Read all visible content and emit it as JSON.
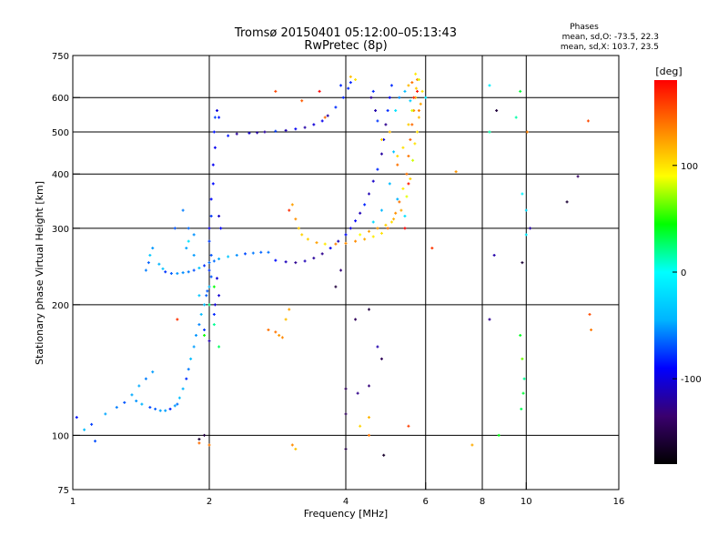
{
  "chart_data": {
    "type": "scatter",
    "title": "Tromsø 20150401 05:12:00–05:13:43",
    "subtitle": "RwPretec (8p)",
    "xlabel": "Frequency [MHz]",
    "ylabel": "Stationary phase Virtual Height [km]",
    "x_scale": "log",
    "y_scale": "log",
    "xlim": [
      1,
      16
    ],
    "ylim": [
      75,
      750
    ],
    "x_ticks": [
      1,
      2,
      4,
      6,
      8,
      10,
      16
    ],
    "x_tick_labels": [
      "1",
      "2",
      "4",
      "6",
      "8",
      "10",
      "16"
    ],
    "y_ticks": [
      75,
      100,
      200,
      300,
      400,
      500,
      600,
      750
    ],
    "y_tick_labels": [
      "75",
      "100",
      "200",
      "300",
      "400",
      "500",
      "600",
      "750"
    ],
    "grid_x": [
      2,
      4,
      6,
      8,
      10
    ],
    "grid_y": [
      100,
      200,
      300,
      400,
      500,
      600
    ],
    "color_encoding": "phase [deg]",
    "stats": {
      "title": "Phases",
      "line1": "mean, sd,O: -73.5, 22.3",
      "line2": "mean, sd,X: 103.7, 23.5"
    },
    "colorbar": {
      "label": "[deg]",
      "min": -180,
      "max": 180,
      "ticks": [
        100,
        0,
        -100
      ],
      "tick_labels": [
        "100",
        "0",
        "-100"
      ],
      "colors": [
        "#000000",
        "#3a006e",
        "#0000ff",
        "#00b4ff",
        "#00ffff",
        "#00ff00",
        "#ffff00",
        "#ff8000",
        "#ff0000"
      ]
    },
    "series": [
      {
        "phase": -60,
        "points": [
          [
            1.02,
            110
          ],
          [
            1.06,
            103
          ],
          [
            1.12,
            97
          ],
          [
            1.1,
            106
          ],
          [
            1.18,
            112
          ],
          [
            1.25,
            116
          ],
          [
            1.3,
            119
          ],
          [
            1.35,
            124
          ],
          [
            1.4,
            130
          ],
          [
            1.45,
            135
          ],
          [
            1.5,
            140
          ],
          [
            1.38,
            120
          ],
          [
            1.42,
            118
          ],
          [
            1.48,
            116
          ],
          [
            1.52,
            115
          ],
          [
            1.56,
            114
          ],
          [
            1.6,
            114
          ],
          [
            1.64,
            115
          ],
          [
            1.68,
            117
          ],
          [
            1.7,
            118
          ],
          [
            1.72,
            122
          ],
          [
            1.75,
            128
          ],
          [
            1.78,
            135
          ],
          [
            1.8,
            142
          ],
          [
            1.82,
            150
          ],
          [
            1.85,
            160
          ],
          [
            1.87,
            170
          ],
          [
            1.9,
            180
          ],
          [
            1.92,
            190
          ],
          [
            1.95,
            200
          ],
          [
            1.97,
            210
          ],
          [
            1.98,
            215
          ],
          [
            2.0,
            220
          ],
          [
            2.02,
            232
          ],
          [
            2.0,
            240
          ],
          [
            2.02,
            260
          ]
        ]
      },
      {
        "phase": -55,
        "points": [
          [
            1.45,
            240
          ],
          [
            1.47,
            250
          ],
          [
            1.48,
            260
          ],
          [
            1.5,
            270
          ],
          [
            1.55,
            248
          ],
          [
            1.58,
            242
          ],
          [
            1.6,
            238
          ],
          [
            1.65,
            236
          ],
          [
            1.7,
            236
          ],
          [
            1.75,
            237
          ],
          [
            1.8,
            238
          ],
          [
            1.85,
            240
          ],
          [
            1.9,
            243
          ],
          [
            1.95,
            246
          ],
          [
            2.0,
            250
          ],
          [
            2.05,
            252
          ],
          [
            2.1,
            255
          ],
          [
            2.2,
            258
          ],
          [
            2.3,
            260
          ],
          [
            2.4,
            262
          ],
          [
            2.5,
            263
          ],
          [
            2.6,
            264
          ],
          [
            2.7,
            264
          ],
          [
            1.75,
            330
          ],
          [
            1.8,
            300
          ],
          [
            1.85,
            290
          ],
          [
            1.78,
            270
          ],
          [
            1.68,
            300
          ]
        ]
      },
      {
        "phase": -95,
        "points": [
          [
            2.0,
            280
          ],
          [
            2.0,
            300
          ],
          [
            2.02,
            320
          ],
          [
            2.02,
            350
          ],
          [
            2.04,
            380
          ],
          [
            2.04,
            420
          ],
          [
            2.06,
            460
          ],
          [
            2.05,
            500
          ],
          [
            2.06,
            540
          ],
          [
            2.08,
            560
          ],
          [
            2.1,
            540
          ],
          [
            2.1,
            320
          ],
          [
            2.12,
            300
          ],
          [
            2.08,
            230
          ],
          [
            2.1,
            210
          ],
          [
            2.06,
            200
          ],
          [
            2.05,
            190
          ],
          [
            1.95,
            175
          ],
          [
            2.0,
            165
          ]
        ]
      },
      {
        "phase": -100,
        "points": [
          [
            2.2,
            490
          ],
          [
            2.3,
            495
          ],
          [
            2.45,
            497
          ],
          [
            2.55,
            498
          ],
          [
            2.65,
            500
          ],
          [
            2.8,
            502
          ],
          [
            2.95,
            504
          ],
          [
            3.1,
            508
          ],
          [
            3.25,
            512
          ],
          [
            3.4,
            520
          ],
          [
            3.55,
            530
          ],
          [
            3.65,
            545
          ],
          [
            3.8,
            570
          ],
          [
            3.95,
            600
          ],
          [
            4.05,
            630
          ],
          [
            4.1,
            650
          ],
          [
            3.9,
            640
          ],
          [
            2.8,
            253
          ],
          [
            2.95,
            251
          ],
          [
            3.1,
            250
          ],
          [
            3.25,
            252
          ],
          [
            3.4,
            256
          ],
          [
            3.55,
            262
          ],
          [
            3.7,
            270
          ],
          [
            3.85,
            280
          ],
          [
            4.0,
            290
          ],
          [
            4.1,
            300
          ],
          [
            4.2,
            312
          ],
          [
            4.3,
            325
          ],
          [
            4.4,
            340
          ],
          [
            4.5,
            360
          ],
          [
            4.6,
            385
          ],
          [
            4.7,
            410
          ],
          [
            4.8,
            445
          ],
          [
            4.85,
            480
          ],
          [
            4.9,
            520
          ],
          [
            4.95,
            560
          ],
          [
            5.0,
            600
          ],
          [
            5.05,
            640
          ],
          [
            4.55,
            600
          ],
          [
            4.6,
            620
          ],
          [
            4.65,
            560
          ],
          [
            4.7,
            530
          ]
        ]
      },
      {
        "phase": 120,
        "points": [
          [
            3.05,
            340
          ],
          [
            3.1,
            315
          ],
          [
            3.15,
            300
          ],
          [
            3.2,
            290
          ],
          [
            3.3,
            283
          ],
          [
            3.45,
            278
          ],
          [
            3.6,
            276
          ],
          [
            3.8,
            276
          ],
          [
            4.0,
            277
          ],
          [
            4.2,
            280
          ],
          [
            4.4,
            283
          ],
          [
            4.6,
            287
          ],
          [
            4.8,
            292
          ],
          [
            4.95,
            300
          ],
          [
            5.05,
            310
          ],
          [
            5.15,
            325
          ],
          [
            5.25,
            345
          ],
          [
            5.35,
            370
          ],
          [
            5.45,
            400
          ],
          [
            5.5,
            440
          ],
          [
            5.55,
            480
          ],
          [
            5.6,
            520
          ],
          [
            5.65,
            560
          ],
          [
            5.7,
            600
          ],
          [
            5.72,
            630
          ],
          [
            5.75,
            660
          ],
          [
            5.6,
            650
          ],
          [
            5.5,
            640
          ],
          [
            4.8,
            480
          ],
          [
            5.0,
            500
          ],
          [
            5.2,
            420
          ],
          [
            3.0,
            195
          ],
          [
            2.95,
            185
          ],
          [
            2.85,
            170
          ],
          [
            2.9,
            168
          ],
          [
            3.1,
            93
          ],
          [
            3.05,
            95
          ],
          [
            4.5,
            110
          ],
          [
            4.3,
            105
          ]
        ]
      },
      {
        "phase": 100,
        "points": [
          [
            4.3,
            290
          ],
          [
            4.5,
            295
          ],
          [
            4.7,
            300
          ],
          [
            4.9,
            305
          ],
          [
            5.1,
            315
          ],
          [
            5.3,
            330
          ],
          [
            5.45,
            355
          ],
          [
            5.55,
            390
          ],
          [
            5.62,
            430
          ],
          [
            5.68,
            470
          ],
          [
            5.75,
            500
          ],
          [
            5.8,
            540
          ],
          [
            5.85,
            580
          ],
          [
            5.9,
            620
          ],
          [
            5.8,
            660
          ],
          [
            5.7,
            680
          ],
          [
            5.6,
            560
          ],
          [
            5.5,
            520
          ],
          [
            5.35,
            460
          ],
          [
            5.2,
            440
          ],
          [
            4.2,
            660
          ],
          [
            4.1,
            670
          ]
        ]
      },
      {
        "phase": -30,
        "points": [
          [
            5.1,
            450
          ],
          [
            5.15,
            560
          ],
          [
            5.25,
            600
          ],
          [
            5.4,
            620
          ],
          [
            5.55,
            590
          ],
          [
            5.2,
            350
          ],
          [
            5.4,
            320
          ],
          [
            5.0,
            380
          ],
          [
            4.8,
            330
          ],
          [
            4.6,
            310
          ],
          [
            1.9,
            210
          ],
          [
            1.85,
            260
          ],
          [
            1.8,
            280
          ],
          [
            6.0,
            600
          ],
          [
            8.3,
            640
          ],
          [
            10.0,
            290
          ],
          [
            10.0,
            330
          ],
          [
            9.8,
            360
          ]
        ]
      },
      {
        "phase": 160,
        "points": [
          [
            5.8,
            560
          ],
          [
            5.75,
            620
          ],
          [
            5.65,
            600
          ],
          [
            5.5,
            380
          ],
          [
            5.4,
            300
          ],
          [
            2.0,
            95
          ],
          [
            1.9,
            96
          ],
          [
            4.5,
            100
          ],
          [
            2.7,
            175
          ],
          [
            2.8,
            173
          ],
          [
            10.05,
            500
          ],
          [
            3.0,
            330
          ],
          [
            3.5,
            620
          ]
        ]
      },
      {
        "phase": -140,
        "points": [
          [
            1.95,
            100
          ],
          [
            1.9,
            98
          ],
          [
            3.8,
            220
          ],
          [
            3.9,
            240
          ],
          [
            4.5,
            195
          ],
          [
            4.2,
            185
          ],
          [
            4.7,
            160
          ],
          [
            4.8,
            150
          ],
          [
            4.5,
            130
          ],
          [
            4.25,
            125
          ],
          [
            4.0,
            128
          ],
          [
            4.0,
            112
          ],
          [
            4.85,
            90
          ],
          [
            4.0,
            93
          ],
          [
            8.3,
            185
          ],
          [
            8.5,
            260
          ],
          [
            9.8,
            250
          ],
          [
            10.2,
            300
          ],
          [
            13.0,
            395
          ],
          [
            12.3,
            345
          ],
          [
            8.6,
            560
          ]
        ]
      },
      {
        "phase": 40,
        "points": [
          [
            2.05,
            220
          ],
          [
            2.0,
            200
          ],
          [
            2.05,
            180
          ],
          [
            2.1,
            160
          ],
          [
            1.95,
            170
          ],
          [
            8.7,
            100
          ],
          [
            9.7,
            170
          ],
          [
            9.8,
            150
          ],
          [
            9.9,
            135
          ],
          [
            9.85,
            125
          ],
          [
            9.75,
            115
          ],
          [
            8.3,
            500
          ],
          [
            9.5,
            540
          ],
          [
            9.7,
            620
          ]
        ]
      },
      {
        "phase": 140,
        "points": [
          [
            7.6,
            95
          ],
          [
            7.0,
            405
          ],
          [
            6.2,
            270
          ],
          [
            13.7,
            530
          ],
          [
            13.8,
            190
          ],
          [
            13.9,
            175
          ],
          [
            5.5,
            105
          ],
          [
            1.7,
            185
          ],
          [
            2.8,
            620
          ],
          [
            3.2,
            590
          ],
          [
            3.6,
            540
          ]
        ]
      }
    ]
  }
}
